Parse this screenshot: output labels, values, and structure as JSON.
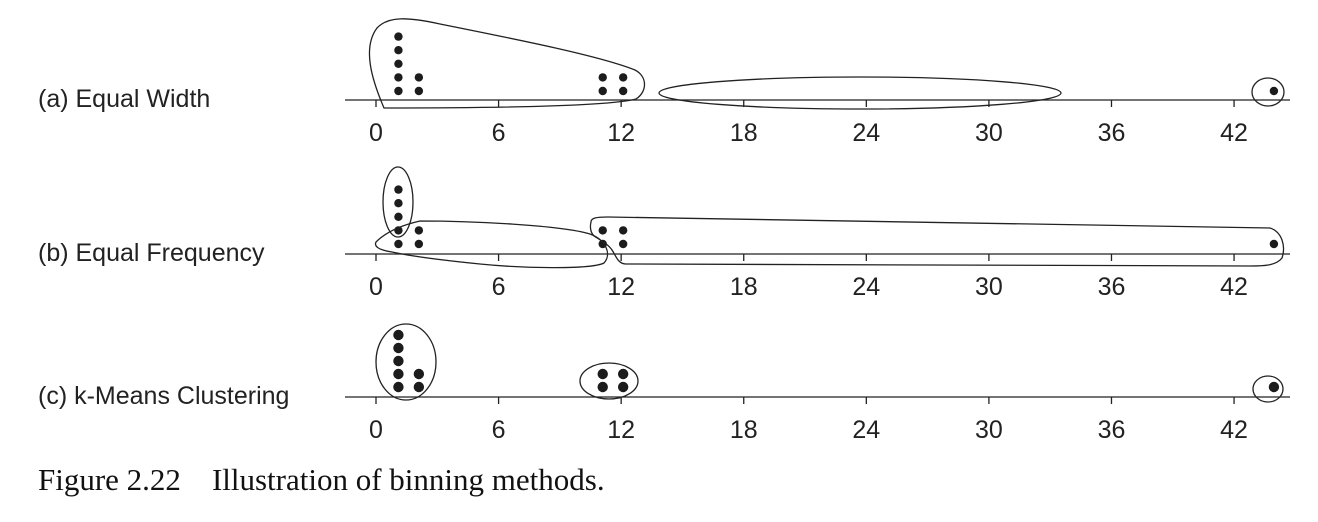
{
  "figure": {
    "caption_number": "Figure 2.22",
    "caption_text": "Illustration of binning methods."
  },
  "axis": {
    "ticks": [
      "0",
      "6",
      "12",
      "18",
      "24",
      "30",
      "36",
      "42"
    ]
  },
  "points": [
    {
      "value": 1,
      "count": 5
    },
    {
      "value": 2,
      "count": 2
    },
    {
      "value": 11,
      "count": 2
    },
    {
      "value": 12,
      "count": 2
    },
    {
      "value": 44,
      "count": 1
    }
  ],
  "panels": [
    {
      "label": "(a) Equal Width"
    },
    {
      "label": "(b) Equal Frequency"
    },
    {
      "label": "(c) k-Means Clustering"
    }
  ]
}
